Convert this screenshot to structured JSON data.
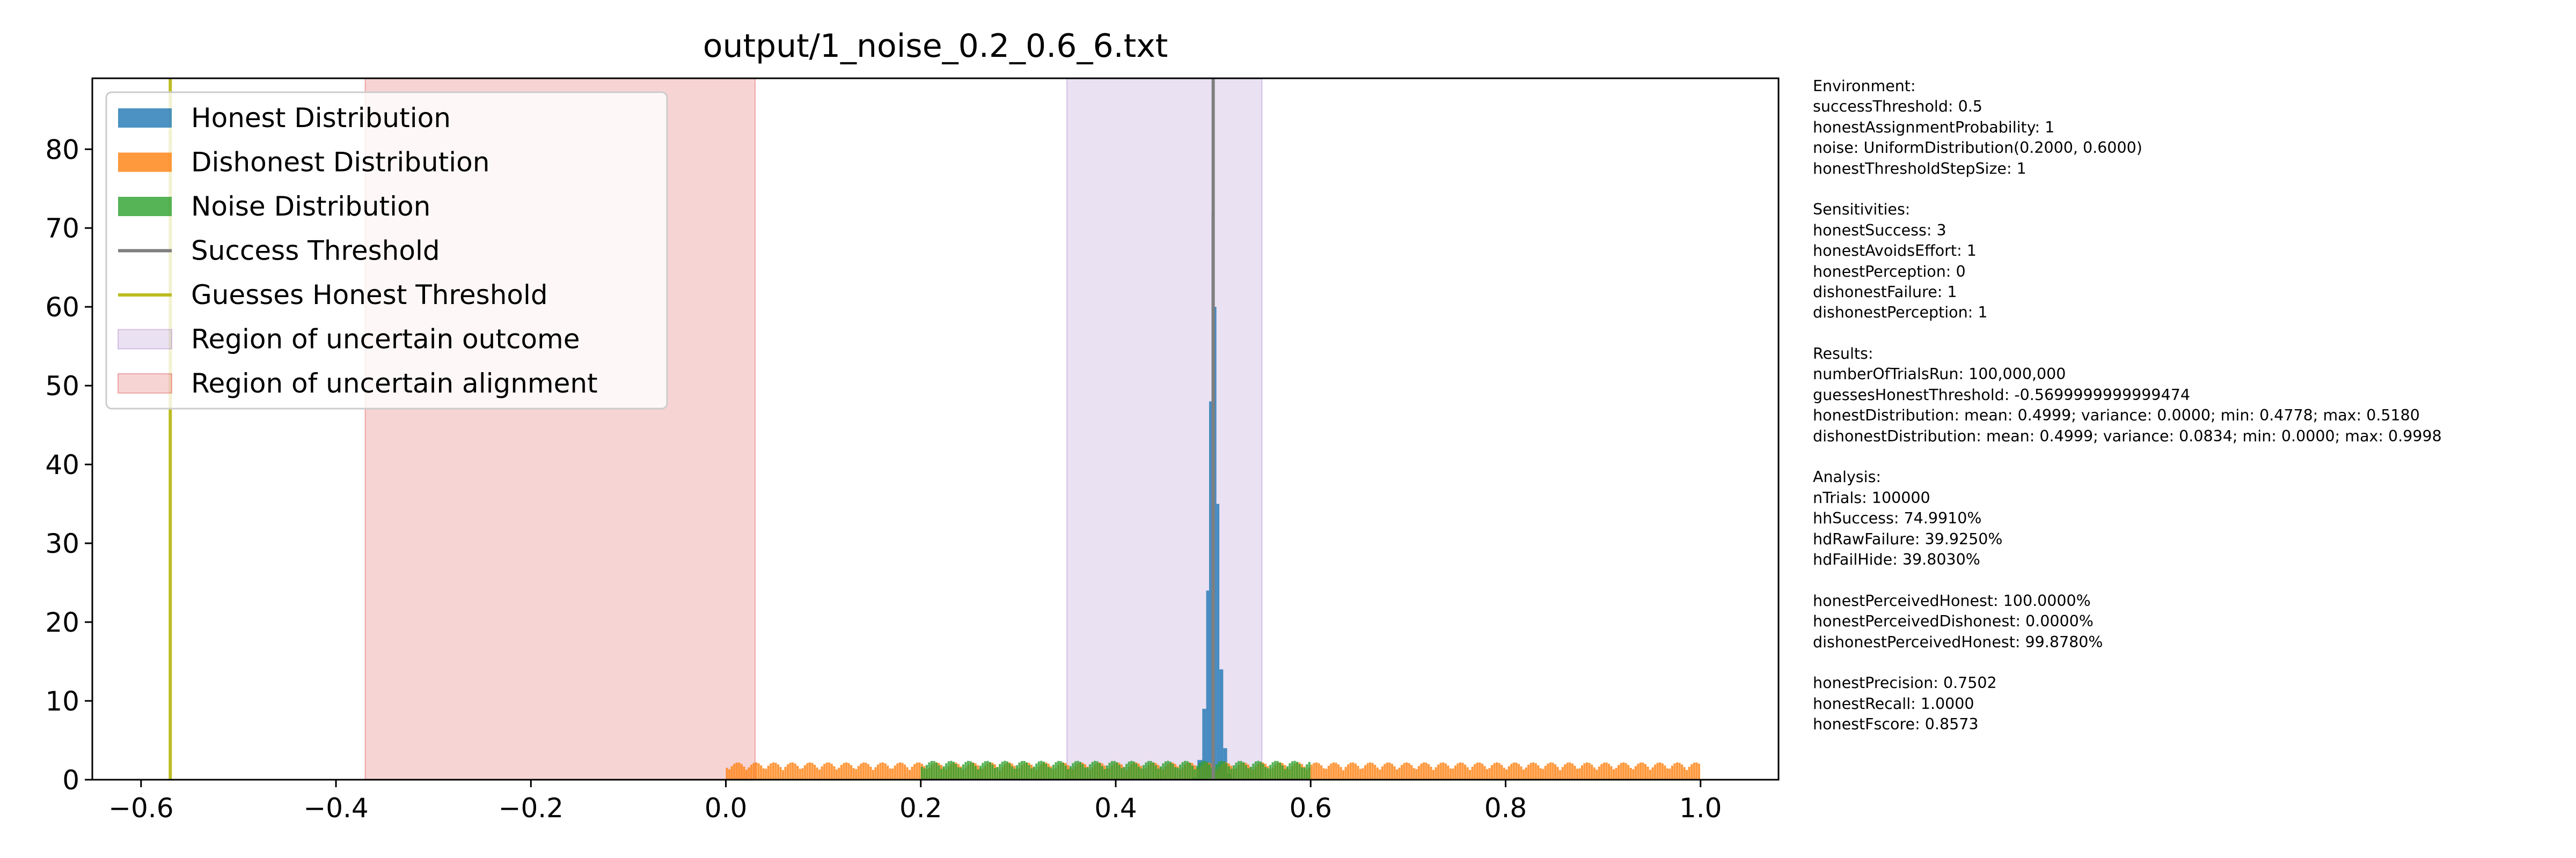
{
  "chart_data": {
    "type": "histogram",
    "title": "output/1_noise_0.2_0.6_6.txt",
    "xlabel": "",
    "ylabel": "",
    "xlim": [
      -0.65,
      1.08
    ],
    "ylim": [
      0,
      89
    ],
    "xticks": [
      -0.6,
      -0.4,
      -0.2,
      0.0,
      0.2,
      0.4,
      0.6,
      0.8,
      1.0
    ],
    "xtick_labels": [
      "−0.6",
      "−0.4",
      "−0.2",
      "0.0",
      "0.2",
      "0.4",
      "0.6",
      "0.8",
      "1.0"
    ],
    "yticks": [
      0,
      10,
      20,
      30,
      40,
      50,
      60,
      70,
      80
    ],
    "ytick_labels": [
      "0",
      "10",
      "20",
      "30",
      "40",
      "50",
      "60",
      "70",
      "80"
    ],
    "grid": false,
    "legend_position": "upper-left",
    "series": [
      {
        "name": "Honest Distribution",
        "kind": "histogram",
        "color": "#1f77b4",
        "bins": [
          [
            0.4778,
            0.4838,
            0.3
          ],
          [
            0.4838,
            0.4888,
            2.5
          ],
          [
            0.4888,
            0.4928,
            9
          ],
          [
            0.4928,
            0.4958,
            24
          ],
          [
            0.4958,
            0.4983,
            48
          ],
          [
            0.4983,
            0.5008,
            72
          ],
          [
            0.5008,
            0.5033,
            60
          ],
          [
            0.5033,
            0.5063,
            35
          ],
          [
            0.5063,
            0.5103,
            14
          ],
          [
            0.5103,
            0.5143,
            4
          ],
          [
            0.5143,
            0.518,
            0.8
          ]
        ]
      },
      {
        "name": "Dishonest Distribution",
        "kind": "histogram",
        "color": "#ff7f0e",
        "range": [
          0.0,
          0.9998
        ],
        "level": 2.2
      },
      {
        "name": "Noise Distribution",
        "kind": "histogram",
        "color": "#2ca02c",
        "range": [
          0.2,
          0.6
        ],
        "level": 2.4
      },
      {
        "name": "Success Threshold",
        "kind": "vline",
        "x": 0.5,
        "color": "#7f7f7f"
      },
      {
        "name": "Guesses Honest Threshold",
        "kind": "vline",
        "x": -0.57,
        "color": "#bcbd22"
      },
      {
        "name": "Region of uncertain outcome",
        "kind": "vspan",
        "x0": 0.35,
        "x1": 0.55,
        "color": "#9467bd"
      },
      {
        "name": "Region of uncertain alignment",
        "kind": "vspan",
        "x0": -0.37,
        "x1": 0.03,
        "color": "#d62728"
      }
    ]
  },
  "info_panel": {
    "sections": [
      [
        "Environment:",
        "successThreshold: 0.5",
        "honestAssignmentProbability: 1",
        "noise: UniformDistribution(0.2000, 0.6000)",
        "honestThresholdStepSize: 1"
      ],
      [
        "Sensitivities:",
        "honestSuccess: 3",
        "honestAvoidsEffort: 1",
        "honestPerception: 0",
        "dishonestFailure: 1",
        "dishonestPerception: 1"
      ],
      [
        "Results:",
        "numberOfTrialsRun: 100,000,000",
        "guessesHonestThreshold: -0.5699999999999474",
        "honestDistribution: mean: 0.4999; variance: 0.0000; min: 0.4778; max: 0.5180",
        "dishonestDistribution: mean: 0.4999; variance: 0.0834; min: 0.0000; max: 0.9998"
      ],
      [
        "Analysis:",
        "nTrials: 100000",
        "hhSuccess: 74.9910%",
        "hdRawFailure: 39.9250%",
        "hdFailHide: 39.8030%"
      ],
      [
        "honestPerceivedHonest: 100.0000%",
        "honestPerceivedDishonest: 0.0000%",
        "dishonestPerceivedHonest: 99.8780%"
      ],
      [
        "honestPrecision: 0.7502",
        "honestRecall: 1.0000",
        "honestFscore: 0.8573"
      ]
    ]
  }
}
